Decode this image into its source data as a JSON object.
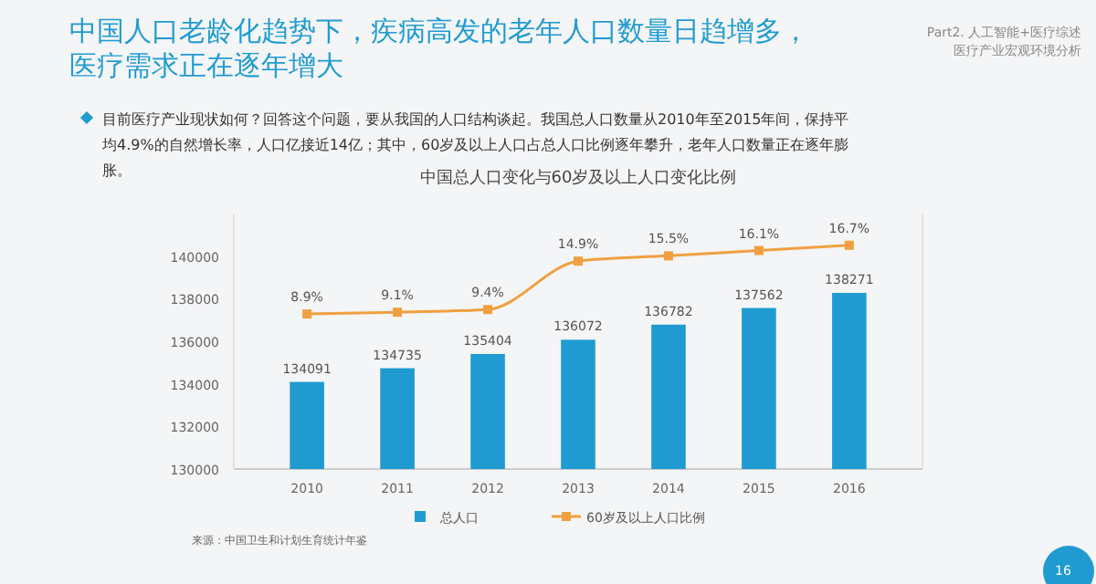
{
  "chart_data": {
    "type": "bar",
    "title": "中国人口老龄化趋势下，疾病高发的老年人口数量日趋增多，医疗需求正在逐年增大",
    "subtitle": "中国总人口变化与60岁及以上人口变化比例",
    "annotations": [
      "Part2. 人工智能+医疗综述",
      "医疗产业宏观环境分析",
      "目前医疗产业现状如何？回答这个问题，要从我国的人口结构谈起。我国总人口数量从2010年至2015年间，保持平均4.9%的自然增长率，人口亿接近14亿；其中，60岁及以上人口占总人口比例逐年攀升，老年人口数量正在逐年膨胀。",
      "来源：中国卫生和计划生育统计年鉴",
      "16"
    ],
    "categories": [
      "2010",
      "2011",
      "2012",
      "2013",
      "2014",
      "2015",
      "2016"
    ],
    "series": [
      {
        "name": "总人口",
        "color": "#1f9bd1",
        "values": [
          134091,
          134735,
          135404,
          136072,
          136782,
          137562,
          138271
        ]
      },
      {
        "name": "60岁及以上人口比例",
        "type": "line",
        "axis": "y2",
        "color": "#f0a040",
        "values": [
          8.9,
          9.1,
          9.4,
          14.9,
          15.5,
          16.1,
          16.7
        ],
        "value_labels": [
          "8.9%",
          "9.1%",
          "9.4%",
          "14.9%",
          "15.5%",
          "16.1%",
          "16.7%"
        ]
      }
    ],
    "ylim": [
      130000,
      142000
    ],
    "yticks": [
      130000,
      132000,
      134000,
      136000,
      138000,
      140000
    ],
    "y2lim": [
      -8.7,
      20.3
    ],
    "data_labels": true,
    "legend": "bottom",
    "marker": "square",
    "grid": false
  }
}
